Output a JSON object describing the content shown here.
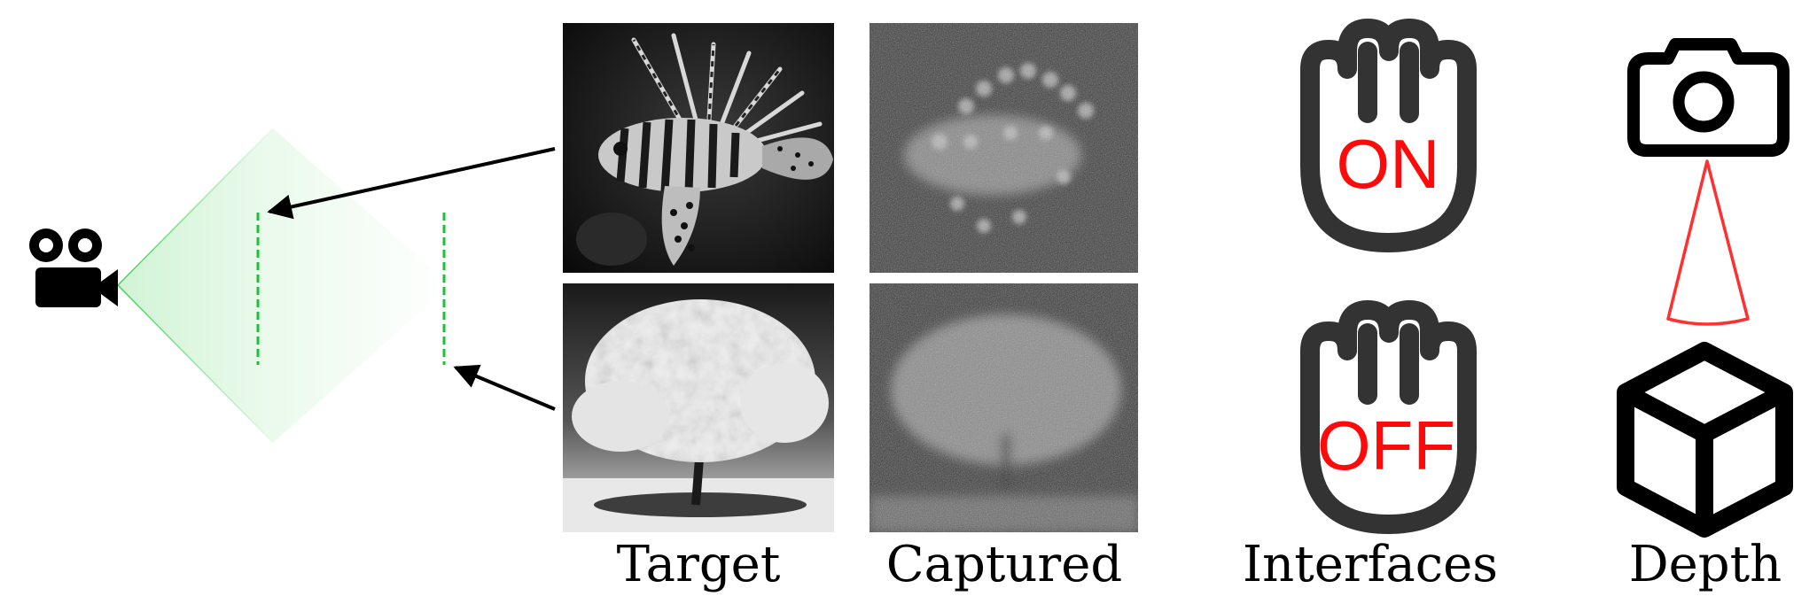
{
  "captions": {
    "target": "Target",
    "captured": "Captured",
    "interfaces": "Interfaces",
    "depth": "Depth"
  },
  "interface_states": {
    "on": "ON",
    "off": "OFF"
  },
  "icons": {
    "camera_source": "video-camera-icon",
    "hand": "hand-icon",
    "photo_camera": "photo-camera-icon",
    "cube": "cube-icon"
  },
  "images": {
    "target_top": "lionfish",
    "captured_top": "lionfish",
    "target_bottom": "tree",
    "captured_bottom": "tree"
  },
  "colors": {
    "light_cone": "#2ecc40",
    "screen_planes": "#1fbf3a",
    "arrows": "#000000",
    "state_text": "#ff0a0a",
    "depth_frustum": "#ff3030",
    "icon_dark": "#333333"
  }
}
